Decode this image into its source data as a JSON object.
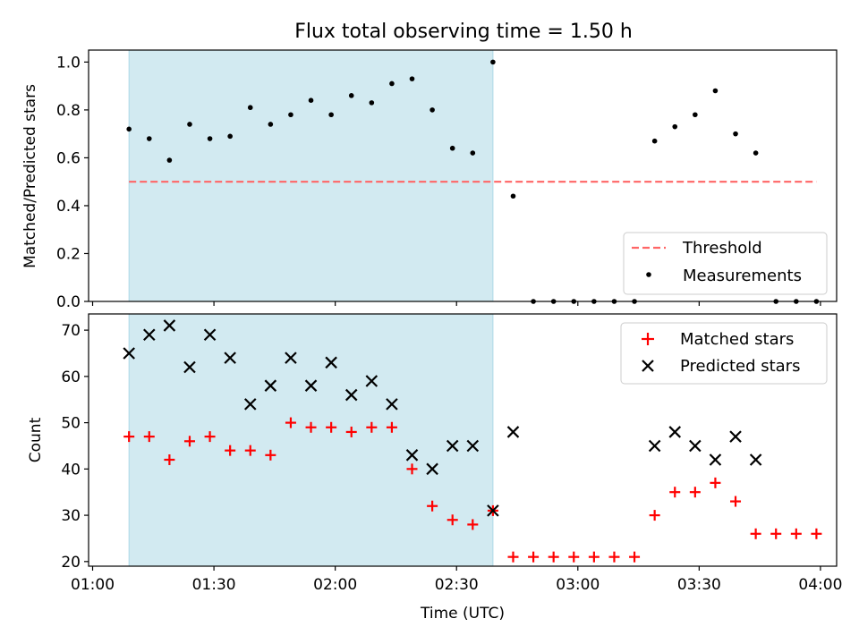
{
  "figure": {
    "title": "Flux total observing time = 1.50 h",
    "xlabel": "Time (UTC)",
    "x_ticks": [
      {
        "minutes": 60,
        "label": "01:00"
      },
      {
        "minutes": 90,
        "label": "01:30"
      },
      {
        "minutes": 120,
        "label": "02:00"
      },
      {
        "minutes": 150,
        "label": "02:30"
      },
      {
        "minutes": 180,
        "label": "03:00"
      },
      {
        "minutes": 210,
        "label": "03:30"
      },
      {
        "minutes": 240,
        "label": "04:00"
      }
    ]
  },
  "chart_data": [
    {
      "type": "scatter",
      "panel": "top",
      "ylabel": "Matched/Predicted stars",
      "xlim_time": [
        "00:59",
        "04:04"
      ],
      "ylim": [
        0,
        1.05
      ],
      "y_ticks": [
        "0.0",
        "0.2",
        "0.4",
        "0.6",
        "0.8",
        "1.0"
      ],
      "shaded_region_time": [
        "01:09",
        "02:39"
      ],
      "shade_color": "#add8e6",
      "legend_position": "lower right",
      "threshold": {
        "name": "Threshold",
        "value": 0.5,
        "time_range": [
          "01:09",
          "03:59"
        ],
        "color": "#ff6666",
        "style": "dashed"
      },
      "series": [
        {
          "name": "Measurements",
          "marker": "dot",
          "color": "#000000",
          "points": [
            {
              "time": "01:09",
              "y": 0.72
            },
            {
              "time": "01:14",
              "y": 0.68
            },
            {
              "time": "01:19",
              "y": 0.59
            },
            {
              "time": "01:24",
              "y": 0.74
            },
            {
              "time": "01:29",
              "y": 0.68
            },
            {
              "time": "01:34",
              "y": 0.69
            },
            {
              "time": "01:39",
              "y": 0.81
            },
            {
              "time": "01:44",
              "y": 0.74
            },
            {
              "time": "01:49",
              "y": 0.78
            },
            {
              "time": "01:54",
              "y": 0.84
            },
            {
              "time": "01:59",
              "y": 0.78
            },
            {
              "time": "02:04",
              "y": 0.86
            },
            {
              "time": "02:09",
              "y": 0.83
            },
            {
              "time": "02:14",
              "y": 0.91
            },
            {
              "time": "02:19",
              "y": 0.93
            },
            {
              "time": "02:24",
              "y": 0.8
            },
            {
              "time": "02:29",
              "y": 0.64
            },
            {
              "time": "02:34",
              "y": 0.62
            },
            {
              "time": "02:39",
              "y": 1.0
            },
            {
              "time": "02:44",
              "y": 0.44
            },
            {
              "time": "02:49",
              "y": 0.0
            },
            {
              "time": "02:54",
              "y": 0.0
            },
            {
              "time": "02:59",
              "y": 0.0
            },
            {
              "time": "03:04",
              "y": 0.0
            },
            {
              "time": "03:09",
              "y": 0.0
            },
            {
              "time": "03:14",
              "y": 0.0
            },
            {
              "time": "03:19",
              "y": 0.67
            },
            {
              "time": "03:24",
              "y": 0.73
            },
            {
              "time": "03:29",
              "y": 0.78
            },
            {
              "time": "03:34",
              "y": 0.88
            },
            {
              "time": "03:39",
              "y": 0.7
            },
            {
              "time": "03:44",
              "y": 0.62
            },
            {
              "time": "03:49",
              "y": 0.0
            },
            {
              "time": "03:54",
              "y": 0.0
            },
            {
              "time": "03:59",
              "y": 0.0
            }
          ]
        }
      ]
    },
    {
      "type": "scatter",
      "panel": "bottom",
      "ylabel": "Count",
      "xlim_time": [
        "00:59",
        "04:04"
      ],
      "ylim": [
        19,
        73.5
      ],
      "y_ticks": [
        "20",
        "30",
        "40",
        "50",
        "60",
        "70"
      ],
      "shaded_region_time": [
        "01:09",
        "02:39"
      ],
      "shade_color": "#add8e6",
      "legend_position": "upper right",
      "series": [
        {
          "name": "Matched stars",
          "marker": "plus",
          "color": "#ff0000",
          "points": [
            {
              "time": "01:09",
              "y": 47
            },
            {
              "time": "01:14",
              "y": 47
            },
            {
              "time": "01:19",
              "y": 42
            },
            {
              "time": "01:24",
              "y": 46
            },
            {
              "time": "01:29",
              "y": 47
            },
            {
              "time": "01:34",
              "y": 44
            },
            {
              "time": "01:39",
              "y": 44
            },
            {
              "time": "01:44",
              "y": 43
            },
            {
              "time": "01:49",
              "y": 50
            },
            {
              "time": "01:54",
              "y": 49
            },
            {
              "time": "01:59",
              "y": 49
            },
            {
              "time": "02:04",
              "y": 48
            },
            {
              "time": "02:09",
              "y": 49
            },
            {
              "time": "02:14",
              "y": 49
            },
            {
              "time": "02:19",
              "y": 40
            },
            {
              "time": "02:24",
              "y": 32
            },
            {
              "time": "02:29",
              "y": 29
            },
            {
              "time": "02:34",
              "y": 28
            },
            {
              "time": "02:39",
              "y": 31
            },
            {
              "time": "02:44",
              "y": 21
            },
            {
              "time": "02:49",
              "y": 21
            },
            {
              "time": "02:54",
              "y": 21
            },
            {
              "time": "02:59",
              "y": 21
            },
            {
              "time": "03:04",
              "y": 21
            },
            {
              "time": "03:09",
              "y": 21
            },
            {
              "time": "03:14",
              "y": 21
            },
            {
              "time": "03:19",
              "y": 30
            },
            {
              "time": "03:24",
              "y": 35
            },
            {
              "time": "03:29",
              "y": 35
            },
            {
              "time": "03:34",
              "y": 37
            },
            {
              "time": "03:39",
              "y": 33
            },
            {
              "time": "03:44",
              "y": 26
            },
            {
              "time": "03:49",
              "y": 26
            },
            {
              "time": "03:54",
              "y": 26
            },
            {
              "time": "03:59",
              "y": 26
            }
          ]
        },
        {
          "name": "Predicted stars",
          "marker": "x",
          "color": "#000000",
          "points": [
            {
              "time": "01:09",
              "y": 65
            },
            {
              "time": "01:14",
              "y": 69
            },
            {
              "time": "01:19",
              "y": 71
            },
            {
              "time": "01:24",
              "y": 62
            },
            {
              "time": "01:29",
              "y": 69
            },
            {
              "time": "01:34",
              "y": 64
            },
            {
              "time": "01:39",
              "y": 54
            },
            {
              "time": "01:44",
              "y": 58
            },
            {
              "time": "01:49",
              "y": 64
            },
            {
              "time": "01:54",
              "y": 58
            },
            {
              "time": "01:59",
              "y": 63
            },
            {
              "time": "02:04",
              "y": 56
            },
            {
              "time": "02:09",
              "y": 59
            },
            {
              "time": "02:14",
              "y": 54
            },
            {
              "time": "02:19",
              "y": 43
            },
            {
              "time": "02:24",
              "y": 40
            },
            {
              "time": "02:29",
              "y": 45
            },
            {
              "time": "02:34",
              "y": 45
            },
            {
              "time": "02:39",
              "y": 31
            },
            {
              "time": "02:44",
              "y": 48
            },
            {
              "time": "03:19",
              "y": 45
            },
            {
              "time": "03:24",
              "y": 48
            },
            {
              "time": "03:29",
              "y": 45
            },
            {
              "time": "03:34",
              "y": 42
            },
            {
              "time": "03:39",
              "y": 47
            },
            {
              "time": "03:44",
              "y": 42
            }
          ]
        }
      ]
    }
  ]
}
